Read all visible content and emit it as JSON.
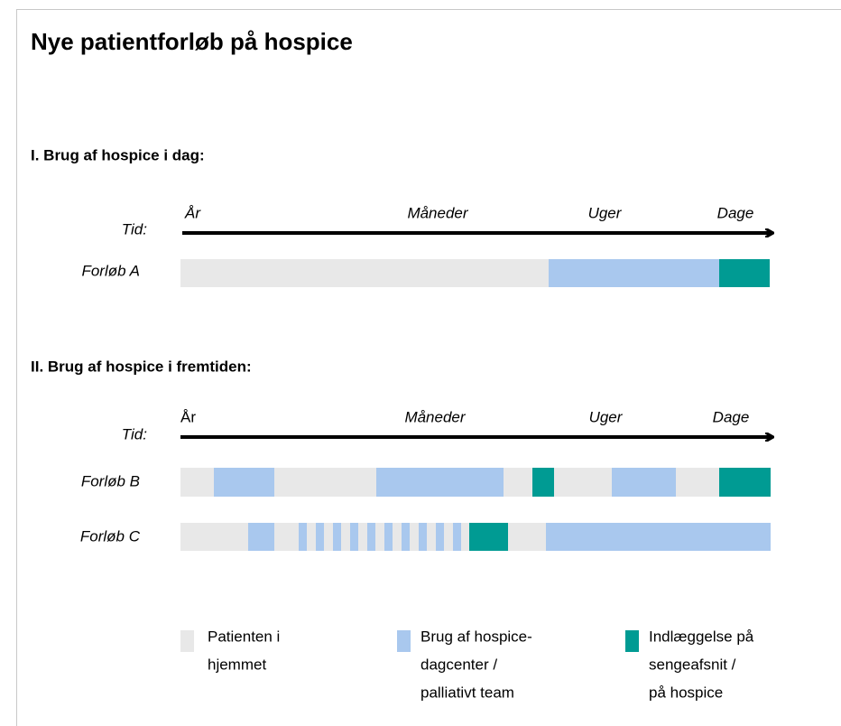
{
  "title": "Nye patientforløb på hospice",
  "section_1": {
    "heading": "I. Brug af hospice i dag:",
    "time_label": "Tid:",
    "scale": [
      "År",
      "Måneder",
      "Uger",
      "Dage"
    ],
    "rows": [
      "Forløb A"
    ]
  },
  "section_2": {
    "heading": "II. Brug af hospice i fremtiden:",
    "time_label": "Tid:",
    "scale": [
      "År",
      "Måneder",
      "Uger",
      "Dage"
    ],
    "rows": [
      "Forløb B",
      "Forløb C"
    ]
  },
  "legend": [
    {
      "lines": [
        "Patienten i",
        "hjemmet"
      ]
    },
    {
      "lines": [
        "Brug af hospice-",
        "dagcenter /",
        "palliativt team"
      ]
    },
    {
      "lines": [
        "Indlæggelse på",
        "sengeafsnit /",
        "på hospice"
      ]
    }
  ]
}
